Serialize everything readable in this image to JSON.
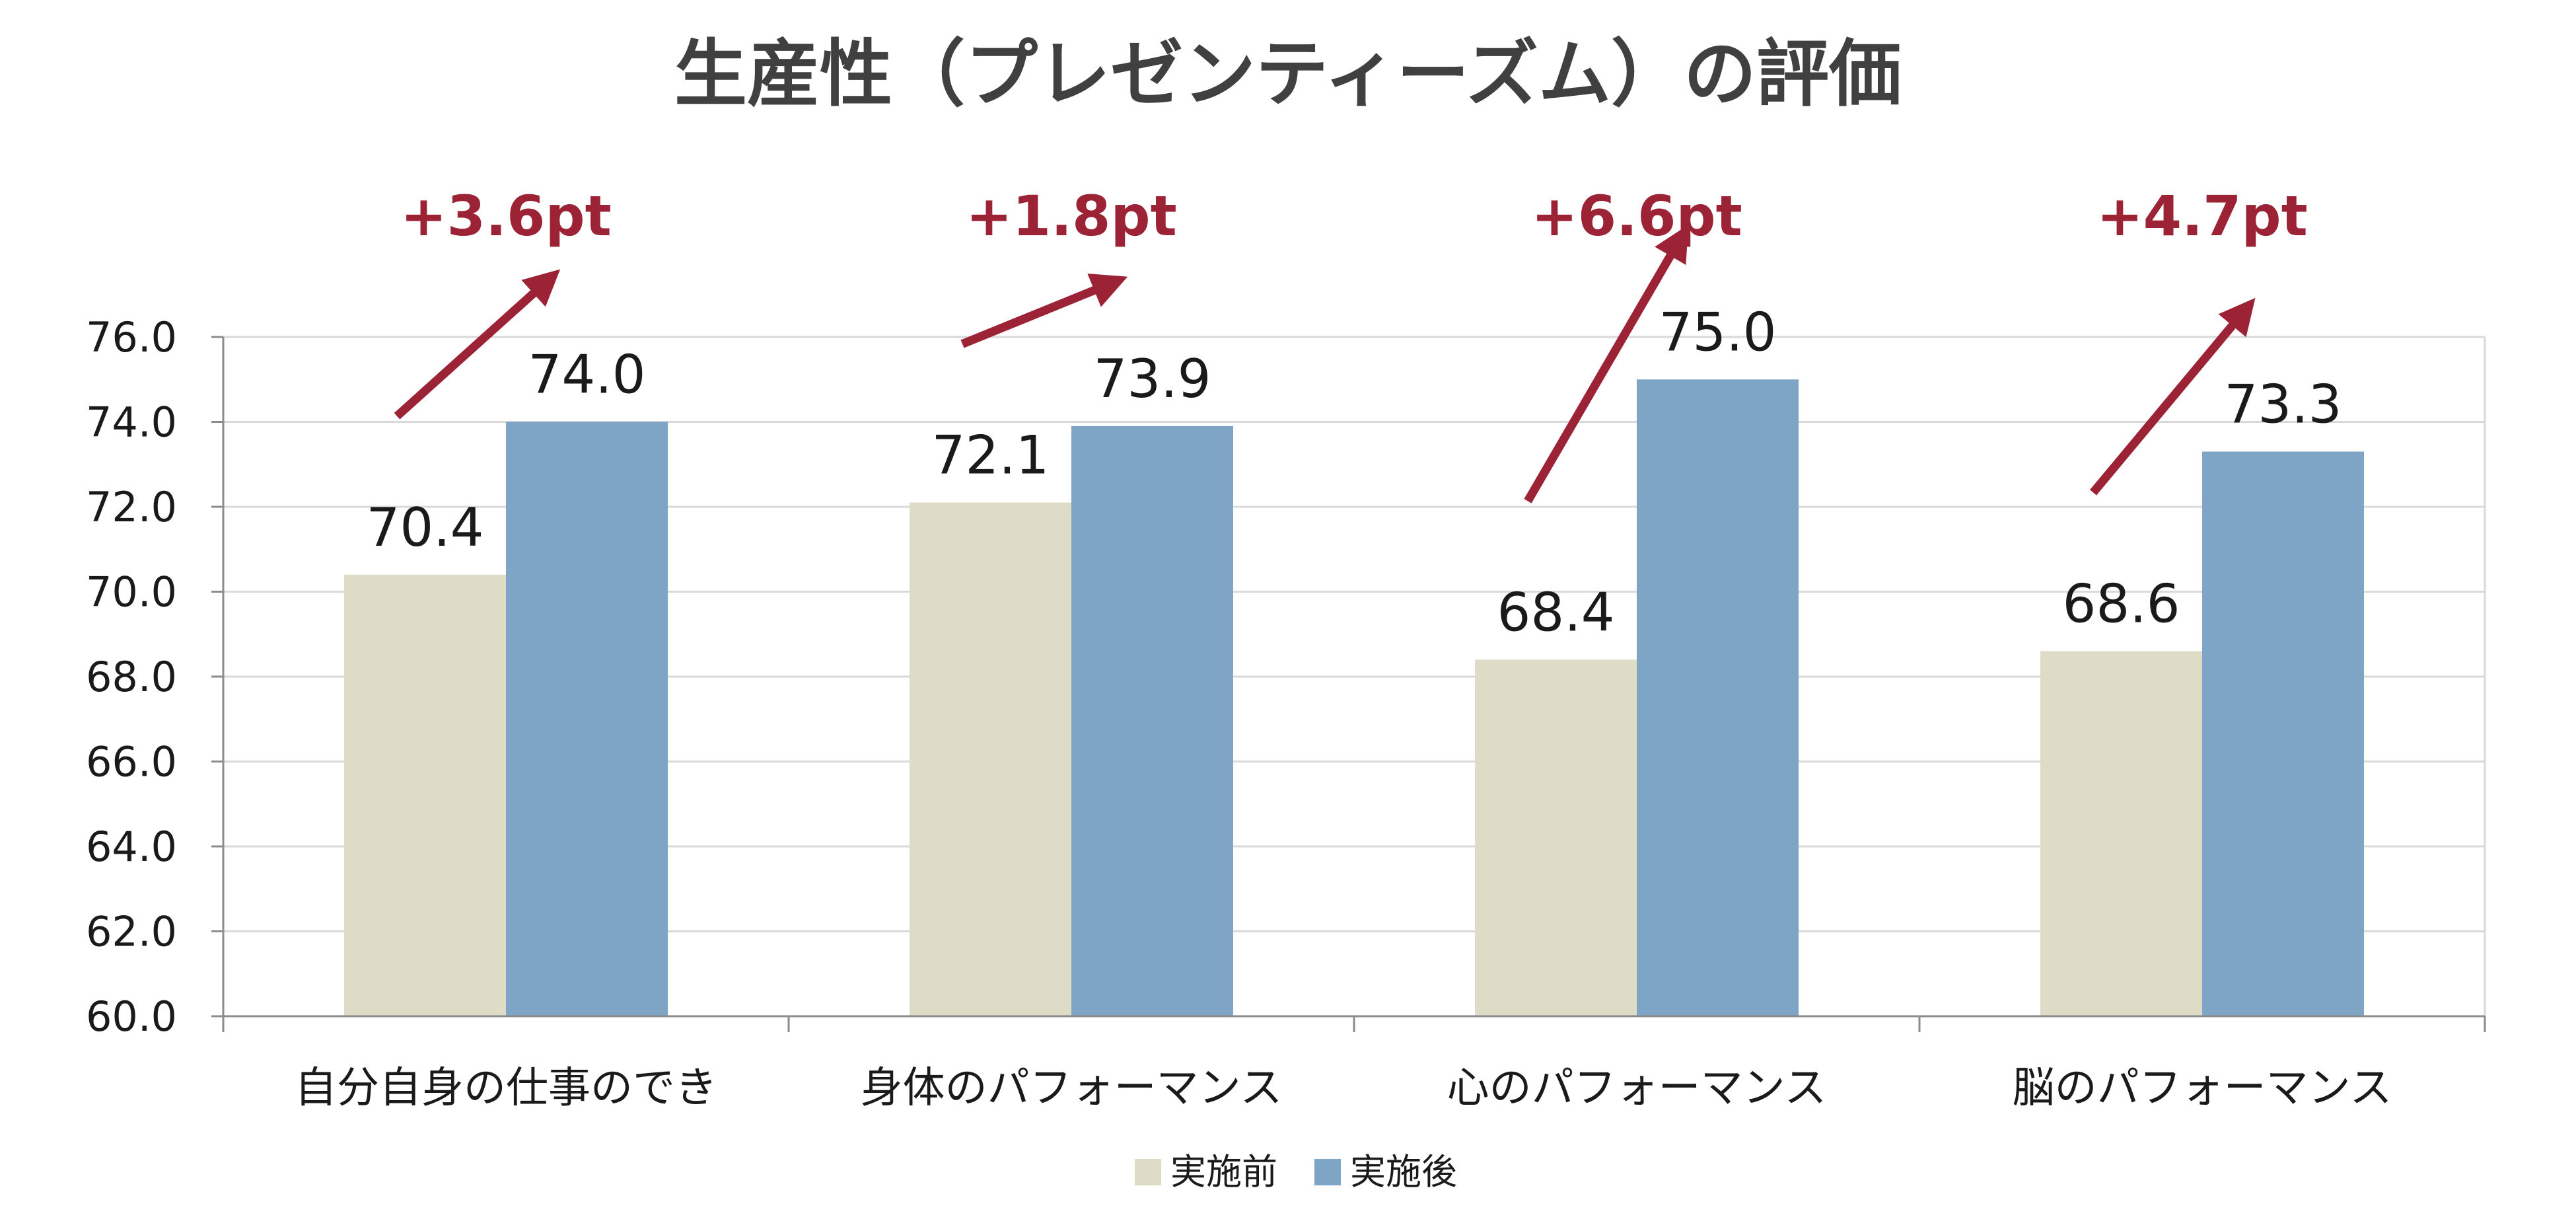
{
  "chart_data": {
    "type": "bar",
    "title": "生産性（プレゼンティーズム）の評価",
    "categories": [
      "自分自身の仕事のでき",
      "身体のパフォーマンス",
      "心のパフォーマンス",
      "脳のパフォーマンス"
    ],
    "series": [
      {
        "name": "実施前",
        "values": [
          70.4,
          72.1,
          68.4,
          68.6
        ],
        "color": "#dedcc6"
      },
      {
        "name": "実施後",
        "values": [
          74.0,
          73.9,
          75.0,
          73.3
        ],
        "color": "#7fa5c6"
      }
    ],
    "data_labels": {
      "before": [
        "70.4",
        "72.1",
        "68.4",
        "68.6"
      ],
      "after": [
        "74.0",
        "73.9",
        "75.0",
        "73.3"
      ]
    },
    "annotations": [
      "+3.6pt",
      "+1.8pt",
      "+6.6pt",
      "+4.7pt"
    ],
    "annotation_color": "#9b2335",
    "ylim": [
      60,
      76
    ],
    "yticks": [
      "60.0",
      "62.0",
      "64.0",
      "66.0",
      "68.0",
      "70.0",
      "72.0",
      "74.0",
      "76.0"
    ],
    "grid": true,
    "legend_position": "bottom"
  }
}
